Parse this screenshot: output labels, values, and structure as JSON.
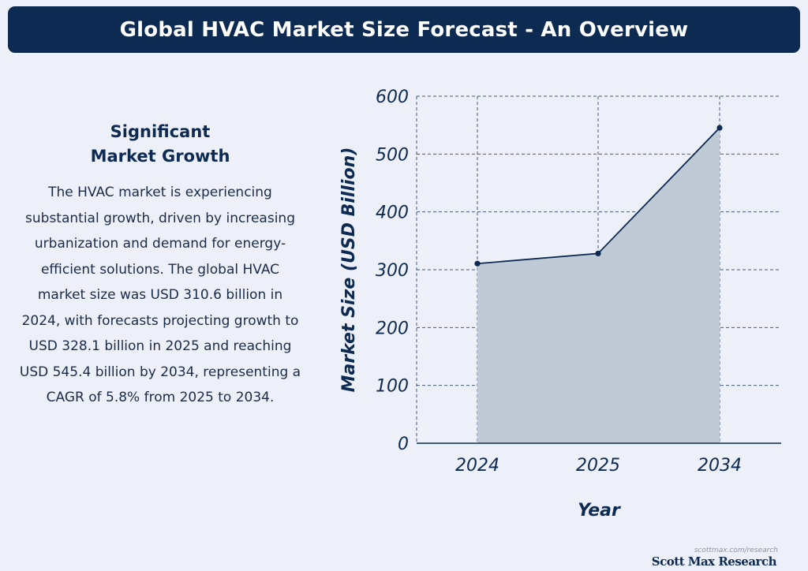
{
  "header": {
    "title": "Global HVAC Market Size Forecast - An Overview"
  },
  "info": {
    "heading": "Significant Market Growth",
    "body": "The HVAC market is experiencing substantial growth, driven by increasing urbanization and demand for energy-efficient solutions. The global HVAC market size was USD 310.6 billion in 2024, with forecasts projecting growth to USD 328.1 billion in 2025 and reaching USD 545.4 billion by 2034, representing a CAGR of 5.8% from 2025 to 2034."
  },
  "chart_data": {
    "type": "area",
    "title": "",
    "categories": [
      "2024",
      "2025",
      "2034"
    ],
    "values": [
      310.6,
      328.1,
      545.4
    ],
    "xlabel": "Year",
    "ylabel": "Market Size (USD Billion)",
    "ylim": [
      0,
      600
    ],
    "yticks": [
      0,
      100,
      200,
      300,
      400,
      500,
      600
    ],
    "grid": true,
    "line_color": "#0d2a52",
    "fill_color": "#c0c9d6"
  },
  "footer": {
    "url": "scottmax.com/research",
    "brand": "Scott Max Research"
  }
}
